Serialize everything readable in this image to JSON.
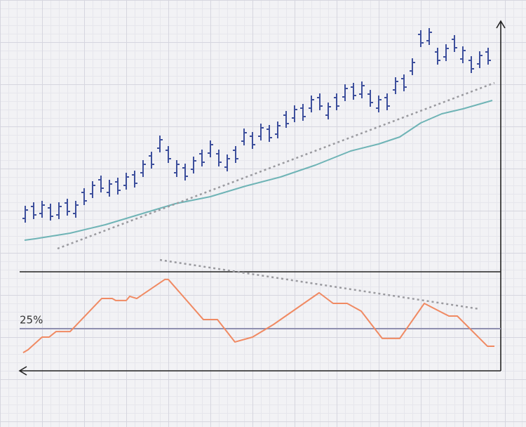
{
  "chart_data": [
    {
      "type": "ohlc",
      "color": "#3d4f9c",
      "x": [
        36,
        48,
        60,
        72,
        84,
        96,
        108,
        120,
        132,
        144,
        156,
        168,
        180,
        192,
        204,
        216,
        228,
        240,
        252,
        264,
        276,
        288,
        300,
        312,
        324,
        336,
        348,
        360,
        372,
        384,
        396,
        408,
        420,
        432,
        444,
        456,
        468,
        480,
        492,
        504,
        516,
        528,
        540,
        552,
        564,
        576,
        588,
        600,
        612,
        624,
        636,
        648,
        660,
        672,
        684,
        696
      ],
      "open": [
        74,
        91,
        81,
        89,
        79,
        96,
        81,
        111,
        109,
        129,
        111,
        126,
        121,
        136,
        139,
        163,
        174,
        171,
        139,
        146,
        144,
        166,
        167,
        166,
        147,
        171,
        184,
        191,
        191,
        201,
        194,
        221,
        217,
        231,
        231,
        246,
        221,
        246,
        247,
        261,
        251,
        251,
        231,
        246,
        257,
        273,
        284,
        336,
        327,
        311,
        304,
        329,
        301,
        299,
        294,
        311
      ],
      "high": [
        92,
        97,
        99,
        95,
        97,
        102,
        99,
        117,
        127,
        135,
        129,
        132,
        139,
        142,
        157,
        169,
        192,
        177,
        157,
        152,
        162,
        172,
        185,
        172,
        165,
        177,
        202,
        197,
        209,
        207,
        212,
        227,
        235,
        237,
        249,
        252,
        239,
        252,
        265,
        267,
        269,
        257,
        249,
        252,
        275,
        279,
        302,
        342,
        345,
        317,
        322,
        335,
        319,
        305,
        312,
        317
      ],
      "low": [
        68,
        73,
        75,
        71,
        73,
        78,
        75,
        93,
        103,
        111,
        105,
        108,
        115,
        118,
        133,
        145,
        168,
        153,
        133,
        128,
        138,
        148,
        161,
        148,
        141,
        153,
        178,
        173,
        185,
        183,
        188,
        203,
        211,
        213,
        225,
        228,
        215,
        228,
        241,
        243,
        245,
        233,
        225,
        228,
        251,
        255,
        278,
        318,
        321,
        293,
        298,
        311,
        295,
        281,
        288,
        293
      ],
      "close": [
        86,
        79,
        93,
        77,
        91,
        84,
        93,
        99,
        121,
        117,
        123,
        114,
        133,
        124,
        151,
        151,
        186,
        159,
        151,
        134,
        156,
        154,
        179,
        154,
        159,
        159,
        196,
        179,
        203,
        189,
        206,
        209,
        229,
        219,
        243,
        234,
        233,
        234,
        259,
        249,
        263,
        239,
        243,
        234,
        269,
        261,
        296,
        324,
        339,
        299,
        316,
        317,
        313,
        287,
        306,
        299
      ],
      "xlim": [
        20,
        720
      ],
      "ylim": [
        0,
        355
      ],
      "overlays": [
        {
          "type": "line",
          "color": "#6fb4b6",
          "x": [
            35,
            50,
            100,
            150,
            200,
            250,
            300,
            350,
            400,
            450,
            500,
            540,
            570,
            600,
            630,
            660,
            702
          ],
          "values": [
            43,
            45,
            53,
            65,
            80,
            95,
            105,
            120,
            133,
            150,
            170,
            180,
            190,
            210,
            223,
            230,
            242
          ]
        },
        {
          "type": "line",
          "style": "dotted",
          "color": "#9a9a9f",
          "x": [
            82,
            705
          ],
          "values": [
            31,
            267
          ]
        }
      ]
    },
    {
      "type": "line",
      "color": "#f08a63",
      "x": [
        33,
        40,
        60,
        70,
        80,
        100,
        145,
        160,
        165,
        180,
        185,
        195,
        235,
        240,
        290,
        310,
        335,
        360,
        390,
        455,
        475,
        495,
        515,
        545,
        570,
        605,
        640,
        652,
        695,
        705
      ],
      "values": [
        10.8,
        12.5,
        20,
        20,
        23.3,
        23.3,
        42.9,
        42.9,
        41.7,
        41.7,
        44.2,
        42.9,
        54.2,
        54.2,
        30.4,
        30.4,
        17.1,
        20,
        27.5,
        46.3,
        40,
        40,
        35.4,
        19.2,
        19.2,
        40,
        32.5,
        32.5,
        14.6,
        14.6
      ],
      "xlim": [
        20,
        720
      ],
      "ylim": [
        0,
        60
      ],
      "yticks": [
        {
          "value": 25,
          "label": "25%"
        }
      ],
      "overlays": [
        {
          "type": "line",
          "style": "dotted",
          "color": "#9a9a9f",
          "x": [
            228,
            683
          ],
          "values": [
            65.8,
            36.7
          ]
        }
      ]
    }
  ]
}
